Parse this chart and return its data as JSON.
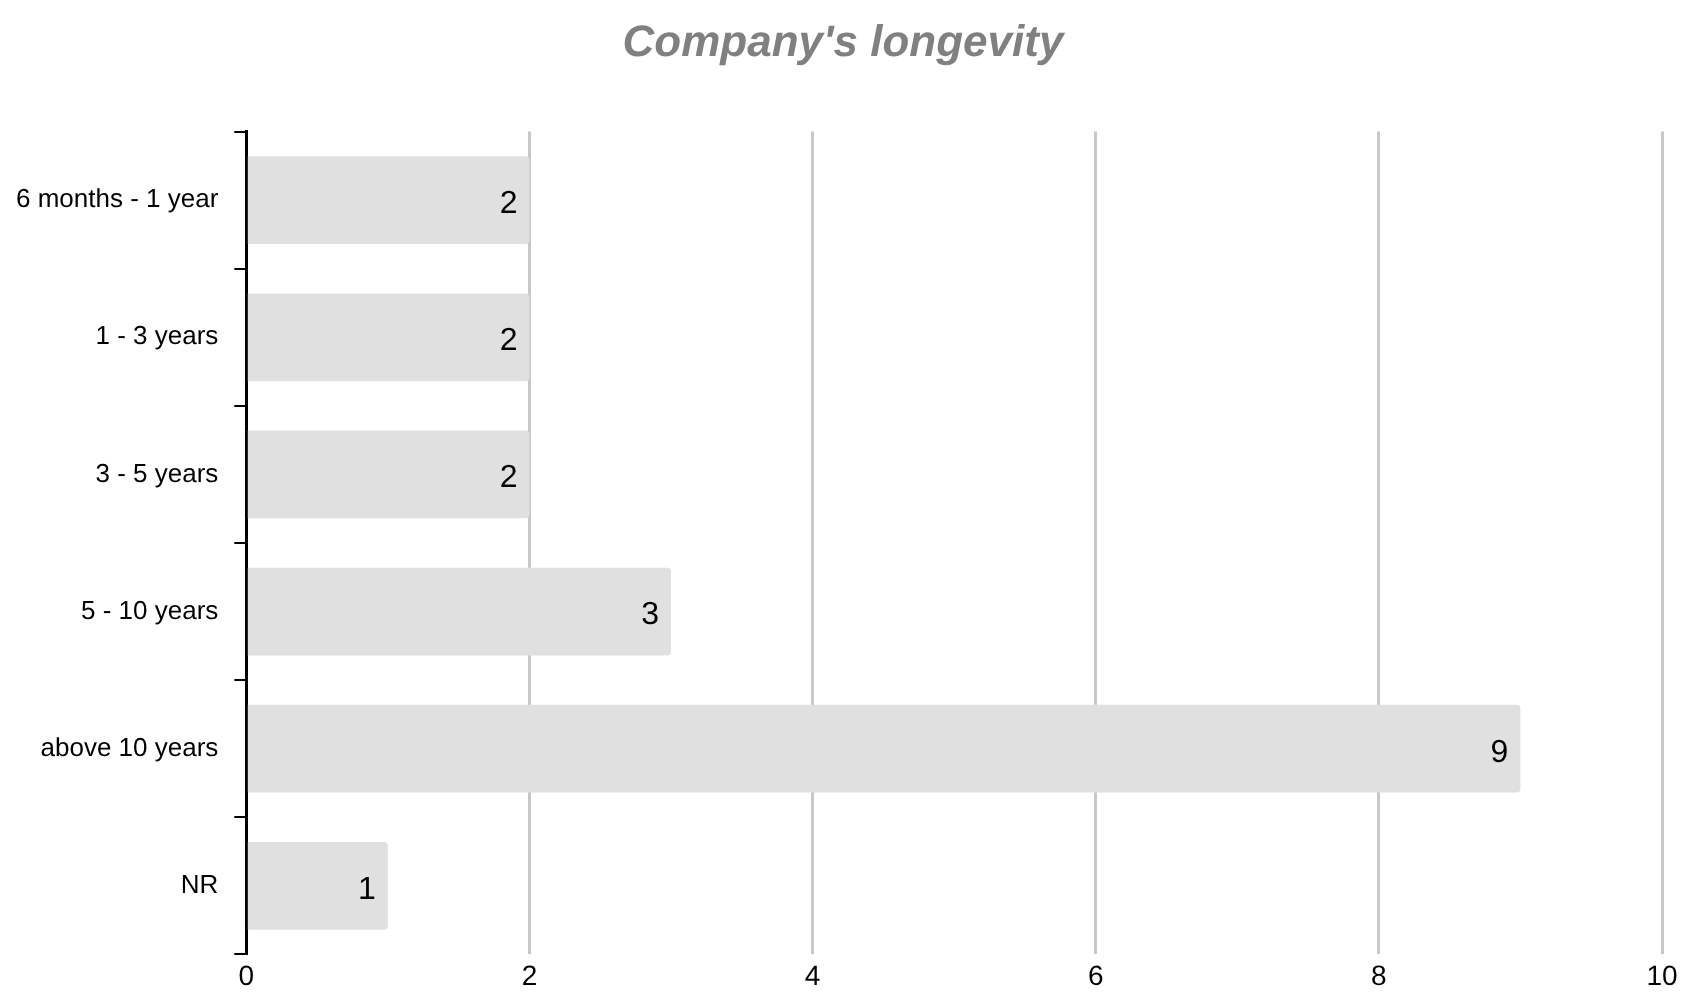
{
  "chart_data": {
    "type": "bar",
    "title": "Company's longevity",
    "orientation": "horizontal",
    "categories": [
      "6 months - 1 year",
      "1 - 3 years",
      "3 - 5 years",
      "5 - 10 years",
      "above 10 years",
      "NR"
    ],
    "values": [
      2,
      2,
      2,
      3,
      9,
      1
    ],
    "color": "#e0e0e0",
    "xlim": [
      0,
      10
    ],
    "xticks": [
      0,
      2,
      4,
      6,
      8,
      10
    ],
    "grid": "x",
    "data_labels": true,
    "legend": false
  }
}
